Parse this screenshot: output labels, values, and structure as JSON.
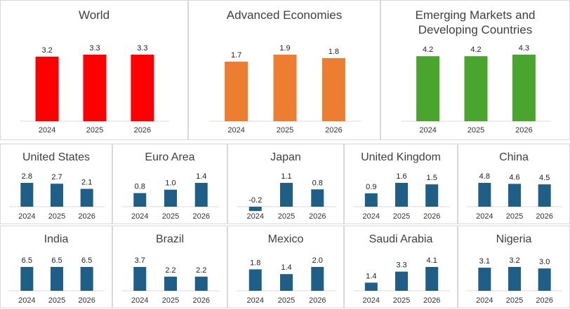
{
  "colors": {
    "world": "#ff0000",
    "advanced": "#ed7d31",
    "emerging": "#4aa52e",
    "country": "#1f5f87",
    "axis": "#d9d9d9",
    "text": "#404040"
  },
  "chart_data": [
    {
      "type": "bar",
      "title": "World",
      "categories": [
        "2024",
        "2025",
        "2026"
      ],
      "values": [
        3.2,
        3.3,
        3.3
      ],
      "labels": [
        "3.2",
        "3.3",
        "3.3"
      ],
      "color": "#ff0000"
    },
    {
      "type": "bar",
      "title": "Advanced Economies",
      "categories": [
        "2024",
        "2025",
        "2026"
      ],
      "values": [
        1.7,
        1.9,
        1.8
      ],
      "labels": [
        "1.7",
        "1.9",
        "1.8"
      ],
      "color": "#ed7d31"
    },
    {
      "type": "bar",
      "title": "Emerging Markets and\nDeveloping Countries",
      "categories": [
        "2024",
        "2025",
        "2026"
      ],
      "values": [
        4.2,
        4.2,
        4.3
      ],
      "labels": [
        "4.2",
        "4.2",
        "4.3"
      ],
      "color": "#4aa52e"
    },
    {
      "type": "bar",
      "title": "United States",
      "categories": [
        "2024",
        "2025",
        "2026"
      ],
      "values": [
        2.8,
        2.7,
        2.1
      ],
      "labels": [
        "2.8",
        "2.7",
        "2.1"
      ],
      "color": "#1f5f87"
    },
    {
      "type": "bar",
      "title": "Euro Area",
      "categories": [
        "2024",
        "2025",
        "2026"
      ],
      "values": [
        0.8,
        1.0,
        1.4
      ],
      "labels": [
        "0.8",
        "1.0",
        "1.4"
      ],
      "color": "#1f5f87"
    },
    {
      "type": "bar",
      "title": "Japan",
      "categories": [
        "2024",
        "2025",
        "2026"
      ],
      "values": [
        -0.2,
        1.1,
        0.8
      ],
      "labels": [
        "-0.2",
        "1.1",
        "0.8"
      ],
      "color": "#1f5f87"
    },
    {
      "type": "bar",
      "title": "United Kingdom",
      "categories": [
        "2024",
        "2025",
        "2026"
      ],
      "values": [
        0.9,
        1.6,
        1.5
      ],
      "labels": [
        "0.9",
        "1.6",
        "1.5"
      ],
      "color": "#1f5f87"
    },
    {
      "type": "bar",
      "title": "China",
      "categories": [
        "2024",
        "2025",
        "2026"
      ],
      "values": [
        4.8,
        4.6,
        4.5
      ],
      "labels": [
        "4.8",
        "4.6",
        "4.5"
      ],
      "color": "#1f5f87"
    },
    {
      "type": "bar",
      "title": "India",
      "categories": [
        "2024",
        "2025",
        "2026"
      ],
      "values": [
        6.5,
        6.5,
        6.5
      ],
      "labels": [
        "6.5",
        "6.5",
        "6.5"
      ],
      "color": "#1f5f87"
    },
    {
      "type": "bar",
      "title": "Brazil",
      "categories": [
        "2024",
        "2025",
        "2026"
      ],
      "values": [
        3.7,
        2.2,
        2.2
      ],
      "labels": [
        "3.7",
        "2.2",
        "2.2"
      ],
      "color": "#1f5f87"
    },
    {
      "type": "bar",
      "title": "Mexico",
      "categories": [
        "2024",
        "2025",
        "2026"
      ],
      "values": [
        1.8,
        1.4,
        2.0
      ],
      "labels": [
        "1.8",
        "1.4",
        "2.0"
      ],
      "color": "#1f5f87"
    },
    {
      "type": "bar",
      "title": "Saudi Arabia",
      "categories": [
        "2024",
        "2025",
        "2026"
      ],
      "values": [
        1.4,
        3.3,
        4.1
      ],
      "labels": [
        "1.4",
        "3.3",
        "4.1"
      ],
      "color": "#1f5f87"
    },
    {
      "type": "bar",
      "title": "Nigeria",
      "categories": [
        "2024",
        "2025",
        "2026"
      ],
      "values": [
        3.1,
        3.2,
        3.0
      ],
      "labels": [
        "3.1",
        "3.2",
        "3.0"
      ],
      "color": "#1f5f87"
    }
  ]
}
